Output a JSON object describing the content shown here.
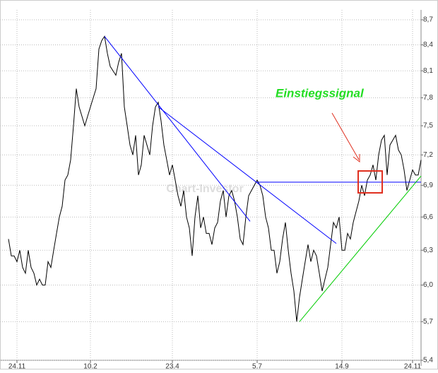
{
  "chart_data": {
    "type": "line",
    "color": "#000000",
    "log_scale": true,
    "grid": true,
    "annotation": "Einstiegssignal",
    "watermark": "Chart-Investor",
    "categories": [
      null,
      null,
      null,
      "24.11",
      null,
      null,
      null,
      null,
      null,
      null,
      null,
      null,
      null,
      null,
      null,
      null,
      null,
      null,
      null,
      null,
      null,
      null,
      null,
      null,
      null,
      null,
      null,
      null,
      null,
      "10.2",
      null,
      null,
      null,
      null,
      null,
      null,
      null,
      null,
      null,
      null,
      null,
      null,
      null,
      null,
      null,
      null,
      null,
      null,
      null,
      null,
      null,
      null,
      null,
      null,
      null,
      null,
      null,
      null,
      "23.4",
      null,
      null,
      null,
      null,
      null,
      null,
      null,
      null,
      null,
      null,
      null,
      null,
      null,
      null,
      null,
      null,
      null,
      null,
      null,
      null,
      null,
      null,
      null,
      null,
      null,
      null,
      null,
      null,
      null,
      "5.7",
      null,
      null,
      null,
      null,
      null,
      null,
      null,
      null,
      null,
      null,
      null,
      null,
      null,
      null,
      null,
      null,
      null,
      null,
      null,
      null,
      null,
      null,
      null,
      null,
      null,
      null,
      null,
      null,
      null,
      "14.9",
      null,
      null,
      null,
      null,
      null,
      null,
      null,
      null,
      null,
      null,
      null,
      null,
      null,
      null,
      null,
      null,
      null,
      null,
      null,
      null,
      null,
      null,
      null,
      null,
      "24.11",
      null,
      null,
      null
    ],
    "values": [
      6.4,
      6.25,
      6.25,
      6.2,
      6.3,
      6.15,
      6.1,
      6.3,
      6.15,
      6.1,
      6.0,
      6.05,
      6.0,
      6.0,
      6.2,
      6.15,
      6.3,
      6.45,
      6.6,
      6.7,
      6.95,
      7.0,
      7.15,
      7.5,
      7.9,
      7.7,
      7.6,
      7.5,
      7.6,
      7.7,
      7.8,
      7.9,
      8.35,
      8.45,
      8.5,
      8.3,
      8.15,
      8.1,
      8.05,
      8.2,
      8.3,
      7.7,
      7.5,
      7.3,
      7.2,
      7.4,
      7.0,
      7.1,
      7.4,
      7.3,
      7.2,
      7.5,
      7.7,
      7.75,
      7.55,
      7.3,
      7.15,
      7.0,
      7.1,
      6.95,
      6.8,
      6.7,
      6.85,
      6.6,
      6.5,
      6.25,
      6.6,
      6.8,
      6.5,
      6.6,
      6.45,
      6.45,
      6.35,
      6.5,
      6.55,
      6.75,
      6.85,
      6.6,
      6.8,
      6.85,
      6.75,
      6.6,
      6.4,
      6.35,
      6.6,
      6.8,
      6.85,
      6.9,
      6.95,
      6.9,
      6.8,
      6.6,
      6.5,
      6.3,
      6.3,
      6.1,
      6.2,
      6.4,
      6.55,
      6.3,
      6.1,
      5.95,
      5.7,
      5.9,
      6.05,
      6.2,
      6.35,
      6.2,
      6.3,
      6.25,
      6.1,
      5.95,
      6.05,
      6.15,
      6.35,
      6.55,
      6.5,
      6.6,
      6.3,
      6.3,
      6.45,
      6.4,
      6.55,
      6.65,
      6.75,
      6.9,
      6.8,
      6.95,
      7.0,
      7.1,
      6.95,
      7.2,
      7.35,
      7.4,
      7.0,
      7.3,
      7.35,
      7.4,
      7.25,
      7.2,
      7.05,
      6.85,
      6.95,
      7.05,
      7.0,
      7.0,
      7.15
    ],
    "ylim": [
      5.4,
      8.7
    ],
    "yticks": [
      {
        "value": 5.4,
        "label": "5,4"
      },
      {
        "value": 5.7,
        "label": "5,7"
      },
      {
        "value": 6.0,
        "label": "6,0"
      },
      {
        "value": 6.3,
        "label": "6,3"
      },
      {
        "value": 6.6,
        "label": "6,6"
      },
      {
        "value": 6.9,
        "label": "6,9"
      },
      {
        "value": 7.2,
        "label": "7,2"
      },
      {
        "value": 7.5,
        "label": "7,5"
      },
      {
        "value": 7.8,
        "label": "7,8"
      },
      {
        "value": 8.1,
        "label": "8,1"
      },
      {
        "value": 8.4,
        "label": "8,4"
      },
      {
        "value": 8.7,
        "label": "8,7"
      }
    ],
    "trendlines": [
      {
        "color": "#0000ff",
        "x": [
          34,
          85.5
        ],
        "y": [
          8.5,
          6.56
        ]
      },
      {
        "color": "#0000ff",
        "x": [
          53,
          116
        ],
        "y": [
          7.7,
          6.36
        ]
      },
      {
        "color": "#0000ff",
        "x": [
          88,
          146
        ],
        "y": [
          6.93,
          6.93
        ]
      },
      {
        "color": "#00cc00",
        "x": [
          103,
          146
        ],
        "y": [
          5.7,
          6.99
        ]
      }
    ]
  }
}
